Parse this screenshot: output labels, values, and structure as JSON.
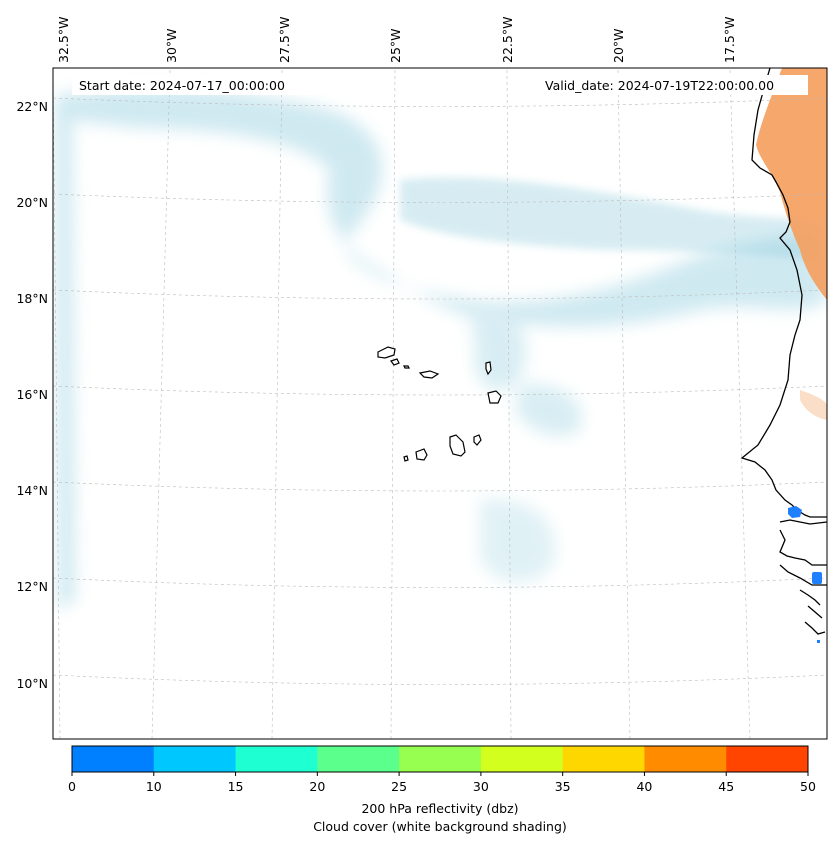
{
  "map": {
    "start_date": "Start date: 2024-07-17_00:00:00",
    "valid_date": "Valid_date: 2024-07-19T22:00:00.00",
    "lon_labels": [
      "32.5°W",
      "30°W",
      "27.5°W",
      "25°W",
      "22.5°W",
      "20°W",
      "17.5°W"
    ],
    "lat_labels": [
      "22°N",
      "20°N",
      "18°N",
      "16°N",
      "14°N",
      "12°N",
      "10°N"
    ]
  },
  "colorbar": {
    "ticks": [
      "0",
      "10",
      "15",
      "20",
      "25",
      "30",
      "35",
      "40",
      "45",
      "50"
    ],
    "colors": [
      "#0080ff",
      "#00c8ff",
      "#1effd2",
      "#5aff8c",
      "#96ff50",
      "#d2ff1e",
      "#ffd700",
      "#ff8c00",
      "#ff4500"
    ],
    "label_line1": "200 hPa reflectivity (dbz)",
    "label_line2": "Cloud cover (white background shading)"
  },
  "colors": {
    "cloud": "#a8d8e6",
    "warm_land": "#f4a060",
    "echo": "#1e7fff"
  }
}
